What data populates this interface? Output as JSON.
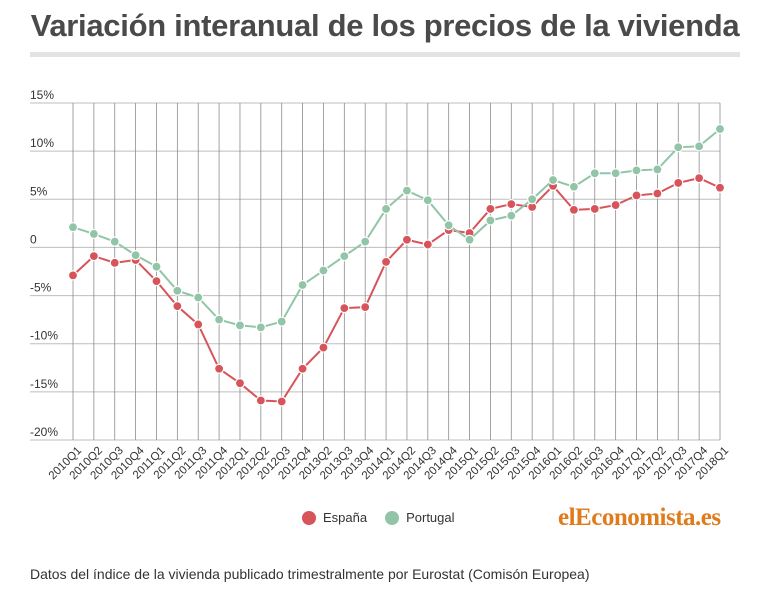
{
  "title": "Variación interanual de los precios de la vivienda",
  "footer": "Datos del índice de la vivienda publicado trimestralmente por Eurostat (Comisón Europea)",
  "logo": {
    "prefix": "el",
    "main": "Economista",
    "suffix": ".es"
  },
  "colors": {
    "espana": "#d6545a",
    "portugal": "#92c5a7",
    "logo": "#e07b1c"
  },
  "chart_data": {
    "type": "line",
    "title": "Variación interanual de los precios de la vivienda",
    "xlabel": "",
    "ylabel": "",
    "ylim": [
      -20,
      15
    ],
    "yticks": [
      15,
      10,
      5,
      0,
      -5,
      -10,
      -15,
      -20
    ],
    "ytick_labels": [
      "15%",
      "10%",
      "5%",
      "0",
      "-5%",
      "-10%",
      "-15%",
      "-20%"
    ],
    "grid": true,
    "legend_position": "bottom",
    "categories": [
      "2010Q1",
      "2010Q2",
      "2010Q3",
      "2010Q4",
      "2011Q1",
      "2011Q2",
      "2011Q3",
      "2011Q4",
      "2012Q1",
      "2012Q2",
      "2012Q3",
      "2012Q4",
      "2013Q2",
      "2013Q3",
      "2013Q4",
      "2014Q1",
      "2014Q2",
      "2014Q3",
      "2014Q4",
      "2015Q1",
      "2015Q2",
      "2015Q3",
      "2015Q4",
      "2016Q1",
      "2016Q2",
      "2016Q3",
      "2016Q4",
      "2017Q1",
      "2017Q2",
      "2017Q3",
      "2017Q4",
      "2018Q1"
    ],
    "series": [
      {
        "name": "España",
        "color": "#d6545a",
        "values": [
          -2.9,
          -0.9,
          -1.6,
          -1.3,
          -3.5,
          -6.1,
          -8.0,
          -12.6,
          -14.1,
          -15.9,
          -16.0,
          -12.6,
          -10.4,
          -6.3,
          -6.2,
          -1.5,
          0.8,
          0.3,
          1.8,
          1.5,
          4.0,
          4.5,
          4.2,
          6.4,
          3.9,
          4.0,
          4.4,
          5.4,
          5.6,
          6.7,
          7.2,
          6.2
        ]
      },
      {
        "name": "Portugal",
        "color": "#92c5a7",
        "values": [
          2.1,
          1.4,
          0.6,
          -0.8,
          -2.0,
          -4.5,
          -5.2,
          -7.5,
          -8.1,
          -8.3,
          -7.7,
          -3.9,
          -2.4,
          -0.9,
          0.6,
          4.0,
          5.9,
          4.9,
          2.3,
          0.8,
          2.8,
          3.3,
          5.0,
          7.0,
          6.3,
          7.7,
          7.7,
          8.0,
          8.1,
          10.4,
          10.5,
          12.3
        ]
      }
    ]
  }
}
